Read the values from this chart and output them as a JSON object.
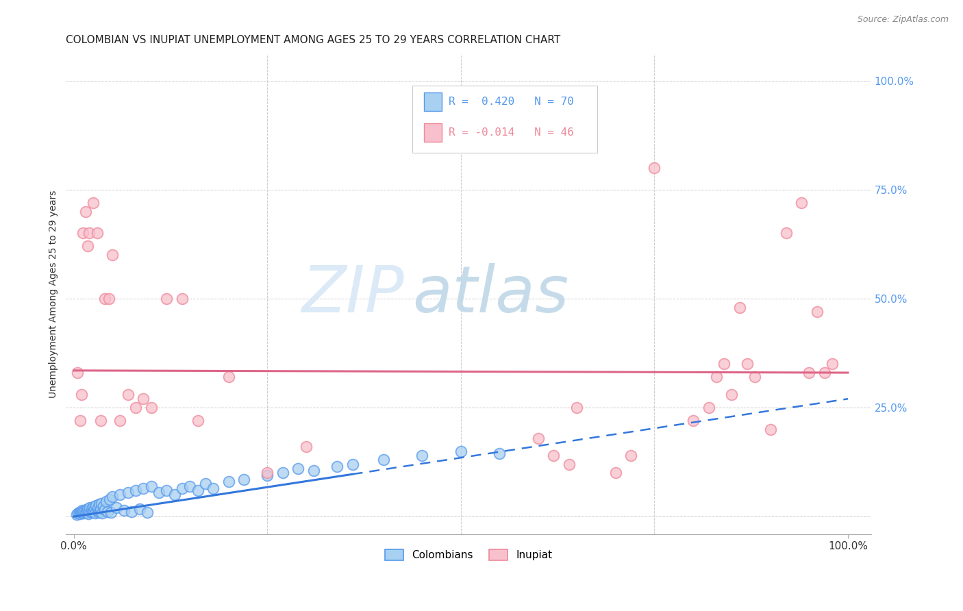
{
  "title": "COLOMBIAN VS INUPIAT UNEMPLOYMENT AMONG AGES 25 TO 29 YEARS CORRELATION CHART",
  "source": "Source: ZipAtlas.com",
  "ylabel": "Unemployment Among Ages 25 to 29 years",
  "legend_entries": [
    {
      "label": "Colombians",
      "r": " 0.420",
      "n": "70"
    },
    {
      "label": "Inupiat",
      "r": "-0.014",
      "n": "46"
    }
  ],
  "watermark_zip": "ZIP",
  "watermark_atlas": "atlas",
  "blue_scatter_face": "#A8D0F0",
  "blue_scatter_edge": "#5599EE",
  "pink_scatter_face": "#F8C0CC",
  "pink_scatter_edge": "#EE8899",
  "blue_line_color": "#3377DD",
  "pink_line_color": "#DD6688",
  "grid_color": "#CCCCCC",
  "right_tick_color": "#5599EE",
  "colombian_x": [
    0.004,
    0.006,
    0.007,
    0.008,
    0.009,
    0.01,
    0.011,
    0.012,
    0.013,
    0.014,
    0.015,
    0.016,
    0.017,
    0.018,
    0.019,
    0.02,
    0.021,
    0.022,
    0.023,
    0.024,
    0.025,
    0.026,
    0.027,
    0.028,
    0.029,
    0.03,
    0.031,
    0.032,
    0.033,
    0.034,
    0.035,
    0.036,
    0.037,
    0.038,
    0.04,
    0.042,
    0.044,
    0.046,
    0.048,
    0.05,
    0.055,
    0.06,
    0.065,
    0.07,
    0.075,
    0.08,
    0.085,
    0.09,
    0.095,
    0.1,
    0.11,
    0.12,
    0.13,
    0.14,
    0.15,
    0.16,
    0.17,
    0.18,
    0.2,
    0.22,
    0.25,
    0.27,
    0.29,
    0.31,
    0.34,
    0.36,
    0.4,
    0.45,
    0.5,
    0.55
  ],
  "colombian_y": [
    0.005,
    0.008,
    0.01,
    0.007,
    0.012,
    0.009,
    0.015,
    0.011,
    0.008,
    0.013,
    0.01,
    0.016,
    0.012,
    0.018,
    0.007,
    0.014,
    0.02,
    0.009,
    0.017,
    0.011,
    0.022,
    0.013,
    0.019,
    0.008,
    0.025,
    0.015,
    0.021,
    0.01,
    0.028,
    0.012,
    0.018,
    0.03,
    0.008,
    0.024,
    0.016,
    0.035,
    0.012,
    0.04,
    0.01,
    0.045,
    0.02,
    0.05,
    0.015,
    0.055,
    0.012,
    0.06,
    0.018,
    0.065,
    0.01,
    0.07,
    0.055,
    0.06,
    0.05,
    0.065,
    0.07,
    0.06,
    0.075,
    0.065,
    0.08,
    0.085,
    0.095,
    0.1,
    0.11,
    0.105,
    0.115,
    0.12,
    0.13,
    0.14,
    0.15,
    0.145
  ],
  "inupiat_x": [
    0.005,
    0.008,
    0.01,
    0.012,
    0.015,
    0.018,
    0.02,
    0.025,
    0.03,
    0.035,
    0.04,
    0.045,
    0.05,
    0.06,
    0.07,
    0.08,
    0.09,
    0.1,
    0.12,
    0.14,
    0.16,
    0.2,
    0.25,
    0.3,
    0.6,
    0.62,
    0.64,
    0.65,
    0.7,
    0.72,
    0.75,
    0.8,
    0.82,
    0.83,
    0.84,
    0.85,
    0.86,
    0.87,
    0.88,
    0.9,
    0.92,
    0.94,
    0.95,
    0.96,
    0.97,
    0.98
  ],
  "inupiat_y": [
    0.33,
    0.22,
    0.28,
    0.65,
    0.7,
    0.62,
    0.65,
    0.72,
    0.65,
    0.22,
    0.5,
    0.5,
    0.6,
    0.22,
    0.28,
    0.25,
    0.27,
    0.25,
    0.5,
    0.5,
    0.22,
    0.32,
    0.1,
    0.16,
    0.18,
    0.14,
    0.12,
    0.25,
    0.1,
    0.14,
    0.8,
    0.22,
    0.25,
    0.32,
    0.35,
    0.28,
    0.48,
    0.35,
    0.32,
    0.2,
    0.65,
    0.72,
    0.33,
    0.47,
    0.33,
    0.35
  ],
  "blue_line_x0": 0.0,
  "blue_line_x_solid_end": 0.36,
  "blue_line_x1": 1.0,
  "blue_line_y0": 0.0,
  "blue_line_y1": 0.27,
  "pink_line_y0": 0.335,
  "pink_line_y1": 0.33,
  "xlim": [
    -0.01,
    1.03
  ],
  "ylim": [
    -0.04,
    1.06
  ]
}
